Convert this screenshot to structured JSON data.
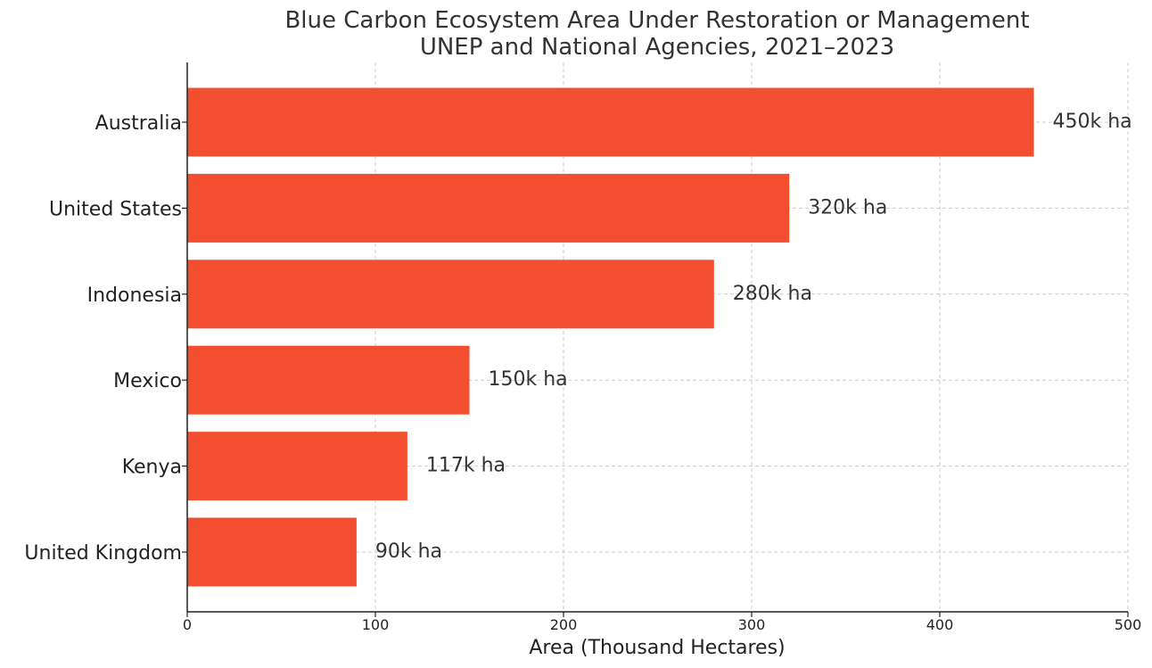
{
  "chart_data": {
    "type": "bar",
    "orientation": "horizontal",
    "title": "Blue Carbon Ecosystem Area Under Restoration or Management",
    "subtitle": "UNEP and National Agencies, 2021–2023",
    "xlabel": "Area (Thousand Hectares)",
    "ylabel": "",
    "xlim": [
      0,
      500
    ],
    "xticks": [
      0,
      100,
      200,
      300,
      400,
      500
    ],
    "grid": true,
    "legend": "none",
    "bar_color": "#f24e2f",
    "categories": [
      "Australia",
      "United States",
      "Indonesia",
      "Mexico",
      "Kenya",
      "United Kingdom"
    ],
    "values": [
      450,
      320,
      280,
      150,
      117,
      90
    ],
    "value_labels": [
      "450k ha",
      "320k ha",
      "280k ha",
      "150k ha",
      "117k ha",
      "90k ha"
    ]
  }
}
